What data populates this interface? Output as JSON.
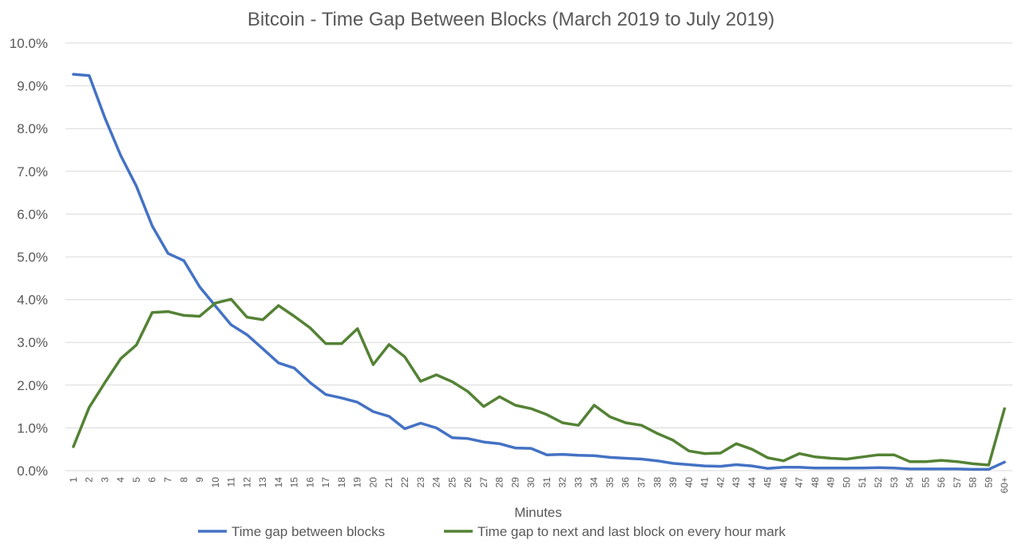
{
  "chart_data": {
    "type": "line",
    "title": "Bitcoin - Time Gap Between Blocks (March 2019 to July 2019)",
    "xlabel": "Minutes",
    "ylabel": "",
    "ylim": [
      0,
      10
    ],
    "y_ticks": [
      "0.0%",
      "1.0%",
      "2.0%",
      "3.0%",
      "4.0%",
      "5.0%",
      "6.0%",
      "7.0%",
      "8.0%",
      "9.0%",
      "10.0%"
    ],
    "categories": [
      "1",
      "2",
      "3",
      "4",
      "5",
      "6",
      "7",
      "8",
      "9",
      "10",
      "11",
      "12",
      "13",
      "14",
      "15",
      "16",
      "17",
      "18",
      "19",
      "20",
      "21",
      "22",
      "23",
      "24",
      "25",
      "26",
      "27",
      "28",
      "29",
      "30",
      "31",
      "32",
      "33",
      "34",
      "35",
      "36",
      "37",
      "38",
      "39",
      "40",
      "41",
      "42",
      "43",
      "44",
      "45",
      "46",
      "47",
      "48",
      "49",
      "50",
      "51",
      "52",
      "53",
      "54",
      "55",
      "56",
      "57",
      "58",
      "59",
      "60+"
    ],
    "grid": true,
    "legend_position": "bottom",
    "series": [
      {
        "name": "Time gap between blocks",
        "color": "#4472C4",
        "values": [
          9.27,
          9.24,
          8.25,
          7.37,
          6.65,
          5.72,
          5.08,
          4.91,
          4.3,
          3.85,
          3.41,
          3.18,
          2.85,
          2.52,
          2.4,
          2.06,
          1.78,
          1.7,
          1.6,
          1.38,
          1.27,
          0.98,
          1.11,
          1.0,
          0.77,
          0.75,
          0.67,
          0.63,
          0.53,
          0.52,
          0.37,
          0.38,
          0.36,
          0.35,
          0.31,
          0.29,
          0.27,
          0.23,
          0.17,
          0.14,
          0.11,
          0.1,
          0.14,
          0.11,
          0.05,
          0.08,
          0.08,
          0.06,
          0.06,
          0.06,
          0.06,
          0.07,
          0.06,
          0.04,
          0.04,
          0.04,
          0.04,
          0.03,
          0.03,
          0.2
        ]
      },
      {
        "name": "Time gap to next and last block on every hour mark",
        "color": "#548235",
        "values": [
          0.56,
          1.48,
          2.06,
          2.62,
          2.94,
          3.7,
          3.72,
          3.63,
          3.61,
          3.92,
          4.01,
          3.59,
          3.53,
          3.86,
          3.61,
          3.34,
          2.97,
          2.97,
          3.32,
          2.48,
          2.95,
          2.66,
          2.09,
          2.24,
          2.08,
          1.85,
          1.5,
          1.73,
          1.53,
          1.45,
          1.31,
          1.12,
          1.06,
          1.53,
          1.26,
          1.12,
          1.06,
          0.87,
          0.71,
          0.46,
          0.4,
          0.41,
          0.63,
          0.5,
          0.3,
          0.23,
          0.4,
          0.32,
          0.29,
          0.27,
          0.32,
          0.37,
          0.37,
          0.21,
          0.21,
          0.24,
          0.21,
          0.16,
          0.13,
          1.45
        ]
      }
    ]
  }
}
